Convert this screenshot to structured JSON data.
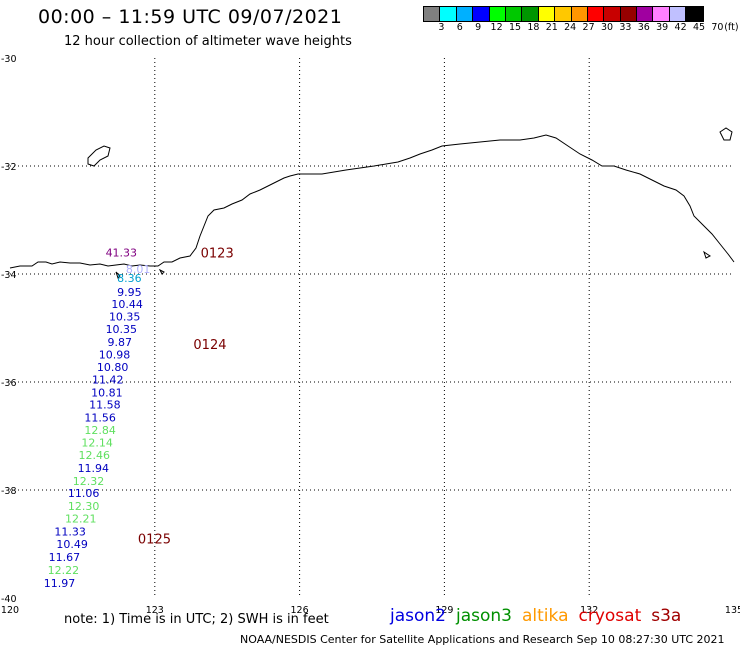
{
  "header": {
    "title": "00:00 – 11:59 UTC 09/07/2021",
    "subtitle": "12 hour collection of altimeter wave heights"
  },
  "colorbar": {
    "unit": "(ft)",
    "colors": [
      "#808080",
      "#00ffff",
      "#00b0ff",
      "#0000ff",
      "#00ff00",
      "#00c800",
      "#009600",
      "#ffff00",
      "#ffc800",
      "#ff9600",
      "#ff0000",
      "#c80000",
      "#960000",
      "#a000a0",
      "#ff80ff",
      "#c0c0ff",
      "#000000"
    ],
    "labels": [
      "3",
      "6",
      "9",
      "12",
      "15",
      "18",
      "21",
      "24",
      "27",
      "30",
      "33",
      "36",
      "39",
      "42",
      "45",
      "70"
    ]
  },
  "map": {
    "lon_range": [
      120,
      135
    ],
    "lat_range": [
      -40,
      -30
    ],
    "lon_ticks": [
      "120",
      "123",
      "126",
      "129",
      "132",
      "135"
    ],
    "lat_ticks": [
      "-30",
      "-32",
      "-34",
      "-36",
      "-38",
      "-40"
    ],
    "grid_lons": [
      123,
      126,
      129,
      132
    ],
    "grid_lats": [
      -32,
      -34,
      -36,
      -38
    ],
    "coastline_color": "#000000"
  },
  "passes": [
    {
      "label": "0123",
      "lon": 123.95,
      "lat": -33.6
    },
    {
      "label": "0124",
      "lon": 123.8,
      "lat": -35.3
    },
    {
      "label": "0125",
      "lon": 122.65,
      "lat": -38.9
    }
  ],
  "observations": [
    {
      "value": "41.33",
      "lon": 121.98,
      "lat": -33.6,
      "color": "#800080"
    },
    {
      "value": "8.01",
      "lon": 122.4,
      "lat": -33.91,
      "color": "#b0b0ff"
    },
    {
      "value": "8.36",
      "lon": 122.22,
      "lat": -34.07,
      "color": "#00a0d0"
    },
    {
      "value": "9.95",
      "lon": 122.22,
      "lat": -34.33,
      "color": "#0000c0"
    },
    {
      "value": "10.44",
      "lon": 122.1,
      "lat": -34.56,
      "color": "#0000c0"
    },
    {
      "value": "10.35",
      "lon": 122.05,
      "lat": -34.79,
      "color": "#0000c0"
    },
    {
      "value": "10.35",
      "lon": 121.98,
      "lat": -35.02,
      "color": "#0000c0"
    },
    {
      "value": "9.87",
      "lon": 122.02,
      "lat": -35.26,
      "color": "#0000c0"
    },
    {
      "value": "10.98",
      "lon": 121.84,
      "lat": -35.49,
      "color": "#0000c0"
    },
    {
      "value": "10.80",
      "lon": 121.8,
      "lat": -35.72,
      "color": "#0000c0"
    },
    {
      "value": "11.42",
      "lon": 121.7,
      "lat": -35.95,
      "color": "#0000c0"
    },
    {
      "value": "10.81",
      "lon": 121.68,
      "lat": -36.19,
      "color": "#0000c0"
    },
    {
      "value": "11.58",
      "lon": 121.64,
      "lat": -36.42,
      "color": "#0000c0"
    },
    {
      "value": "11.56",
      "lon": 121.54,
      "lat": -36.66,
      "color": "#0000c0"
    },
    {
      "value": "12.84",
      "lon": 121.54,
      "lat": -36.89,
      "color": "#60e060"
    },
    {
      "value": "12.14",
      "lon": 121.48,
      "lat": -37.12,
      "color": "#60e060"
    },
    {
      "value": "12.46",
      "lon": 121.42,
      "lat": -37.35,
      "color": "#60e060"
    },
    {
      "value": "11.94",
      "lon": 121.4,
      "lat": -37.59,
      "color": "#0000c0"
    },
    {
      "value": "12.32",
      "lon": 121.3,
      "lat": -37.83,
      "color": "#60e060"
    },
    {
      "value": "11.06",
      "lon": 121.2,
      "lat": -38.06,
      "color": "#0000c0"
    },
    {
      "value": "12.30",
      "lon": 121.2,
      "lat": -38.3,
      "color": "#60e060"
    },
    {
      "value": "12.21",
      "lon": 121.14,
      "lat": -38.53,
      "color": "#60e060"
    },
    {
      "value": "11.33",
      "lon": 120.92,
      "lat": -38.77,
      "color": "#0000c0"
    },
    {
      "value": "10.49",
      "lon": 120.96,
      "lat": -39.0,
      "color": "#0000c0"
    },
    {
      "value": "11.67",
      "lon": 120.8,
      "lat": -39.24,
      "color": "#0000c0"
    },
    {
      "value": "12.22",
      "lon": 120.78,
      "lat": -39.48,
      "color": "#60e060"
    },
    {
      "value": "11.97",
      "lon": 120.7,
      "lat": -39.72,
      "color": "#0000c0"
    }
  ],
  "footer": {
    "note": "note:  1) Time is in UTC;  2) SWH is in feet",
    "legend": [
      {
        "name": "jason2",
        "color": "#0000e0"
      },
      {
        "name": "jason3",
        "color": "#009000"
      },
      {
        "name": "altika",
        "color": "#ff9900"
      },
      {
        "name": "cryosat",
        "color": "#e00000"
      },
      {
        "name": "s3a",
        "color": "#a00000"
      }
    ],
    "credit": "NOAA/NESDIS Center for Satellite Applications and Research    Sep 10 08:27:30 UTC 2021"
  }
}
